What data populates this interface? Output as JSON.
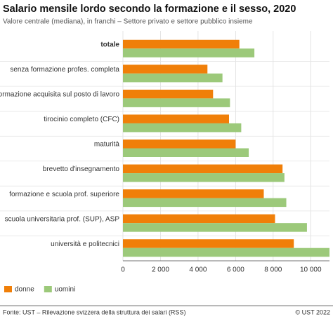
{
  "chart_data": {
    "type": "hbar",
    "title": "Salario mensile lordo secondo la formazione e il sesso, 2020",
    "subtitle": "Valore centrale (mediana), in franchi – Settore privato e settore pubblico insieme",
    "categories": [
      "totale",
      "senza formazione profes. completa",
      "formazione acquisita sul posto di lavoro",
      "tirocinio completo (CFC)",
      "maturità",
      "brevetto d'insegnamento",
      "formazione e scuola prof. superiore",
      "scuola universitaria prof. (SUP), ASP",
      "università e politecnici"
    ],
    "series": [
      {
        "name": "donne",
        "color": "#f07f09",
        "values": [
          6200,
          4500,
          4800,
          5650,
          6000,
          8500,
          7500,
          8100,
          9100
        ]
      },
      {
        "name": "uomini",
        "color": "#9cc97a",
        "values": [
          7000,
          5300,
          5700,
          6300,
          6700,
          8600,
          8700,
          9800,
          11000
        ]
      }
    ],
    "xlim": [
      0,
      11000
    ],
    "xticks": [
      0,
      {
        "value": 2000,
        "label": "2 000"
      },
      {
        "value": 4000,
        "label": "4 000"
      },
      {
        "value": 6000,
        "label": "6 000"
      },
      {
        "value": 8000,
        "label": "8 000"
      },
      {
        "value": 10000,
        "label": "10 000"
      }
    ],
    "grid": true,
    "legend": "bottom-left",
    "source": "Fonte: UST – Rilevazione svizzera della struttura dei salari (RSS)",
    "credit": "© UST 2022"
  }
}
